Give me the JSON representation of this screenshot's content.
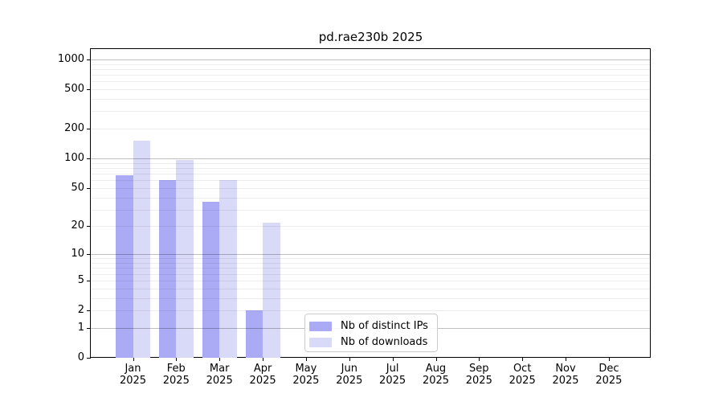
{
  "chart_data": {
    "type": "bar",
    "title": "pd.rae230b 2025",
    "categories": [
      "Jan",
      "Feb",
      "Mar",
      "Apr",
      "May",
      "Jun",
      "Jul",
      "Aug",
      "Sep",
      "Oct",
      "Nov",
      "Dec"
    ],
    "x_year_label": "2025",
    "series": [
      {
        "name": "Nb of distinct IPs",
        "color": "#aaaaf5",
        "values": [
          67,
          60,
          36,
          2,
          0,
          0,
          0,
          0,
          0,
          0,
          0,
          0
        ]
      },
      {
        "name": "Nb of downloads",
        "color": "#d9d9f8",
        "values": [
          150,
          96,
          60,
          22,
          0,
          0,
          0,
          0,
          0,
          0,
          0,
          0
        ]
      }
    ],
    "yscale": "log1p",
    "ylim": [
      0,
      1270
    ],
    "yticks": [
      1000,
      500,
      200,
      100,
      50,
      20,
      10,
      5,
      2,
      1,
      0
    ],
    "grid": {
      "enabled": true,
      "major_at": [
        1,
        10,
        100,
        1000
      ]
    },
    "legend_position": "bottom-center-inside",
    "xlabel": "",
    "ylabel": ""
  }
}
